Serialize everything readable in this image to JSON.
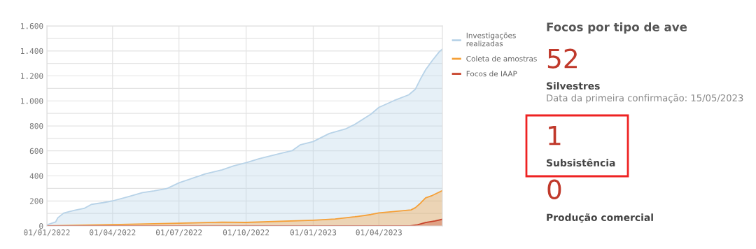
{
  "chart_data": [
    {
      "type": "area",
      "legend": "right",
      "grid": true,
      "line_style": "solid",
      "marker": "none",
      "xlim": [
        "2022-01-01",
        "2023-06-27"
      ],
      "xticks": [
        {
          "value": "2022-01-01",
          "label": "01/01/2022"
        },
        {
          "value": "2022-04-01",
          "label": "01/04/2022"
        },
        {
          "value": "2022-07-01",
          "label": "01/07/2022"
        },
        {
          "value": "2022-10-01",
          "label": "01/10/2022"
        },
        {
          "value": "2023-01-01",
          "label": "01/01/2023"
        },
        {
          "value": "2023-04-01",
          "label": "01/04/2023"
        }
      ],
      "ylim": [
        0,
        1600
      ],
      "yticks": [
        0,
        {
          "value": 100,
          "label": null
        },
        200,
        {
          "value": 300,
          "label": null
        },
        400,
        {
          "value": 500,
          "label": null
        },
        600,
        {
          "value": 700,
          "label": null
        },
        800,
        {
          "value": 900,
          "label": null
        },
        {
          "value": 1000,
          "label": "1.000"
        },
        {
          "value": 1100,
          "label": null
        },
        {
          "value": 1200,
          "label": "1.200"
        },
        {
          "value": 1300,
          "label": null
        },
        {
          "value": 1400,
          "label": "1.400"
        },
        {
          "value": 1500,
          "label": null
        },
        {
          "value": 1600,
          "label": "1.600"
        }
      ],
      "series": [
        {
          "name": "Investigações realizadas",
          "color": "#b8d3e8",
          "x": [
            "2022-01-01",
            "2022-01-13",
            "2022-01-16",
            "2022-01-24",
            "2022-02-08",
            "2022-02-21",
            "2022-03-03",
            "2022-03-19",
            "2022-04-01",
            "2022-04-22",
            "2022-05-12",
            "2022-05-28",
            "2022-06-14",
            "2022-06-21",
            "2022-07-01",
            "2022-07-20",
            "2022-08-06",
            "2022-08-29",
            "2022-09-14",
            "2022-10-01",
            "2022-10-19",
            "2022-11-14",
            "2022-12-03",
            "2022-12-14",
            "2023-01-01",
            "2023-01-23",
            "2023-02-14",
            "2023-02-27",
            "2023-03-21",
            "2023-04-01",
            "2023-04-22",
            "2023-05-12",
            "2023-05-21",
            "2023-05-28",
            "2023-06-04",
            "2023-06-13",
            "2023-06-23",
            "2023-06-27"
          ],
          "values": [
            9,
            32,
            65,
            103,
            125,
            140,
            172,
            186,
            200,
            233,
            267,
            280,
            298,
            317,
            345,
            382,
            416,
            448,
            480,
            505,
            538,
            575,
            602,
            648,
            675,
            739,
            775,
            812,
            894,
            948,
            1003,
            1049,
            1094,
            1176,
            1249,
            1322,
            1395,
            1414
          ]
        },
        {
          "name": "Coleta de amostras",
          "color": "#f5a038",
          "x": [
            "2022-01-01",
            "2022-04-01",
            "2022-07-01",
            "2022-08-29",
            "2022-10-01",
            "2023-01-01",
            "2023-01-31",
            "2023-02-27",
            "2023-03-21",
            "2023-04-01",
            "2023-04-22",
            "2023-05-15",
            "2023-05-21",
            "2023-05-28",
            "2023-06-04",
            "2023-06-13",
            "2023-06-27"
          ],
          "values": [
            0,
            10,
            22,
            30,
            28,
            46,
            55,
            73,
            91,
            104,
            115,
            128,
            146,
            182,
            224,
            243,
            283
          ]
        },
        {
          "name": "Focos de IAAP",
          "color": "#c8442c",
          "x": [
            "2022-01-01",
            "2023-05-14",
            "2023-05-24",
            "2023-06-04",
            "2023-06-17",
            "2023-06-27"
          ],
          "values": [
            0,
            0,
            9,
            27,
            40,
            53
          ]
        }
      ]
    },
    {
      "type": "other",
      "title": "Focos por tipo de ave",
      "annotations": [
        "52",
        "Silvestres",
        "Data da primeira confirmação: 15/05/2023",
        "1",
        "Subsistência",
        "0",
        "Produção comercial"
      ]
    }
  ]
}
